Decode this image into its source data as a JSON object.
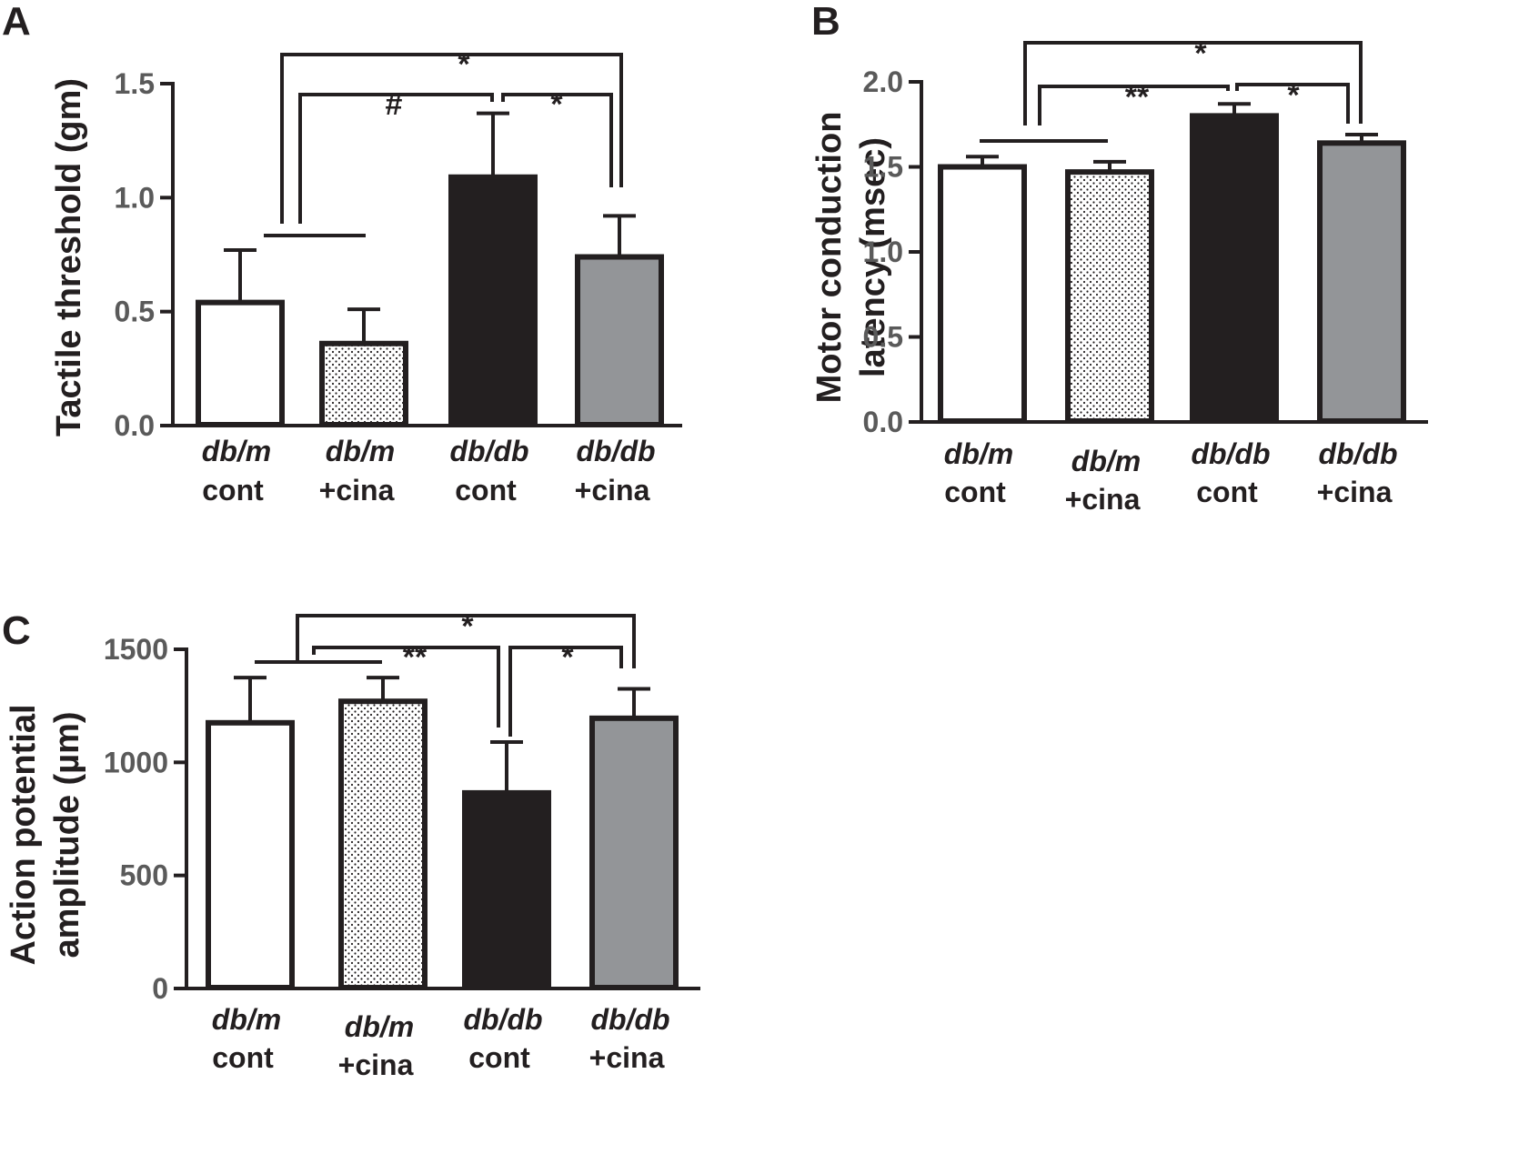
{
  "colors": {
    "ink": "#231f20",
    "white_bar": "#ffffff",
    "dotted_bar": "#ffffff",
    "black_bar": "#231f20",
    "gray_bar": "#939598",
    "tick_text": "#5a5a5a"
  },
  "categories": [
    {
      "top": "db/m",
      "bottom": "cont"
    },
    {
      "top": "db/m",
      "bottom": "+cina"
    },
    {
      "top": "db/db",
      "bottom": "cont"
    },
    {
      "top": "db/db",
      "bottom": "+cina"
    }
  ],
  "chart_data": [
    {
      "panel": "A",
      "type": "bar",
      "ylabel": "Tactile threshold (gm)",
      "ylim": [
        0,
        1.5
      ],
      "yticks": [
        0.0,
        0.5,
        1.0,
        1.5
      ],
      "yticklabels": [
        "0.0",
        "0.5",
        "1.0",
        "1.5"
      ],
      "categories": [
        "db/m cont",
        "db/m +cina",
        "db/db cont",
        "db/db +cina"
      ],
      "values": [
        0.54,
        0.36,
        1.09,
        0.74
      ],
      "errors": [
        0.23,
        0.15,
        0.28,
        0.18
      ],
      "fills": [
        "white",
        "dotted",
        "black",
        "gray"
      ],
      "significance": [
        {
          "label": "*",
          "from": "db/m pooled",
          "to": "db/db +cina"
        },
        {
          "label": "#",
          "from": "db/m pooled",
          "to": "db/db cont"
        },
        {
          "label": "*",
          "from": "db/db cont",
          "to": "db/db +cina"
        }
      ]
    },
    {
      "panel": "B",
      "type": "bar",
      "ylabel": "Motor conduction latency (msec)",
      "ylabel_lines": [
        "Motor conduction",
        "latency (msec)"
      ],
      "ylim": [
        0,
        2.0
      ],
      "yticks": [
        0.0,
        0.5,
        1.0,
        1.5,
        2.0
      ],
      "yticklabels": [
        "0.0",
        "0.5",
        "1.0",
        "1.5",
        "2.0"
      ],
      "categories": [
        "db/m cont",
        "db/m +cina",
        "db/db cont",
        "db/db +cina"
      ],
      "values": [
        1.5,
        1.47,
        1.8,
        1.64
      ],
      "errors": [
        0.06,
        0.06,
        0.07,
        0.05
      ],
      "fills": [
        "white",
        "dotted",
        "black",
        "gray"
      ],
      "significance": [
        {
          "label": "*",
          "from": "db/m pooled",
          "to": "db/db +cina"
        },
        {
          "label": "**",
          "from": "db/m pooled",
          "to": "db/db cont"
        },
        {
          "label": "*",
          "from": "db/db cont",
          "to": "db/db +cina"
        }
      ]
    },
    {
      "panel": "C",
      "type": "bar",
      "ylabel": "Action potential amplitude (µm)",
      "ylabel_lines": [
        "Action potential",
        "amplitude (µm)"
      ],
      "ylim": [
        0,
        1500
      ],
      "yticks": [
        0,
        500,
        1000,
        1500
      ],
      "yticklabels": [
        "0",
        "500",
        "1000",
        "1500"
      ],
      "categories": [
        "db/m cont",
        "db/m +cina",
        "db/db cont",
        "db/db +cina"
      ],
      "values": [
        1175,
        1270,
        865,
        1195
      ],
      "errors": [
        200,
        105,
        225,
        130
      ],
      "fills": [
        "white",
        "dotted",
        "black",
        "gray"
      ],
      "significance": [
        {
          "label": "*",
          "from": "db/m pooled",
          "to": "db/db +cina"
        },
        {
          "label": "**",
          "from": "db/m pooled",
          "to": "db/db cont"
        },
        {
          "label": "*",
          "from": "db/db cont",
          "to": "db/db +cina"
        }
      ]
    }
  ]
}
